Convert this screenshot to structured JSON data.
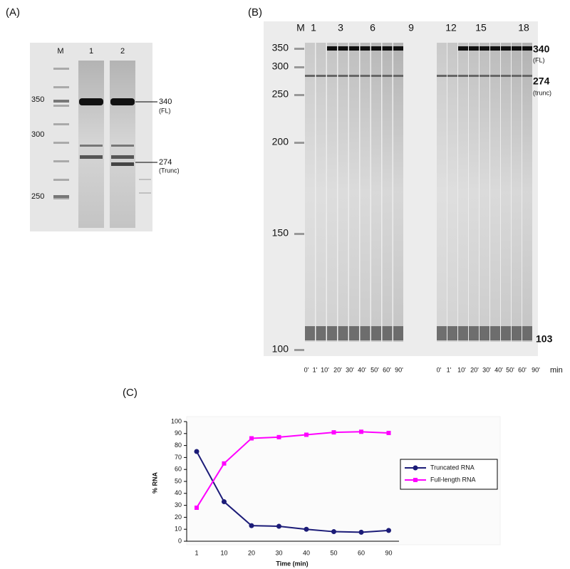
{
  "panel_a": {
    "label": "(A)",
    "lanes": [
      "M",
      "1",
      "2"
    ],
    "markers": [
      "350",
      "300",
      "250"
    ],
    "bands": [
      "340",
      "(FL)",
      "274",
      "(Trunc)"
    ]
  },
  "panel_b": {
    "label": "(B)",
    "lanes": [
      "M",
      "1",
      "3",
      "6",
      "9",
      "12",
      "15",
      "18"
    ],
    "markers": [
      "350",
      "300",
      "250",
      "200",
      "150",
      "100"
    ],
    "bands": [
      "340",
      "(FL)",
      "274",
      "(trunc)",
      "103"
    ],
    "times": [
      "0'",
      "1'",
      "10'",
      "20'",
      "30'",
      "40'",
      "50'",
      "60'",
      "90'",
      "0'",
      "1'",
      "10'",
      "20'",
      "30'",
      "40'",
      "50'",
      "60'",
      "90'"
    ],
    "time_unit": "min"
  },
  "panel_c": {
    "label": "(C)"
  },
  "chart_data": {
    "type": "line",
    "x_label": "Time (min)",
    "y_label": "% RNA",
    "categories": [
      "1",
      "10",
      "20",
      "30",
      "40",
      "50",
      "60",
      "90"
    ],
    "series": [
      {
        "name": "Truncated RNA",
        "color": "#1c1c78",
        "values": [
          75,
          33,
          13,
          12.5,
          10,
          8,
          7.5,
          9
        ]
      },
      {
        "name": "Full-length RNA",
        "color": "#ff00ff",
        "values": [
          28,
          65,
          86,
          87,
          89,
          91,
          91.5,
          90.5
        ]
      }
    ],
    "ylim": [
      0,
      100
    ],
    "yticks": [
      0,
      10,
      20,
      30,
      40,
      50,
      60,
      70,
      80,
      90,
      100
    ],
    "legend": "right"
  }
}
